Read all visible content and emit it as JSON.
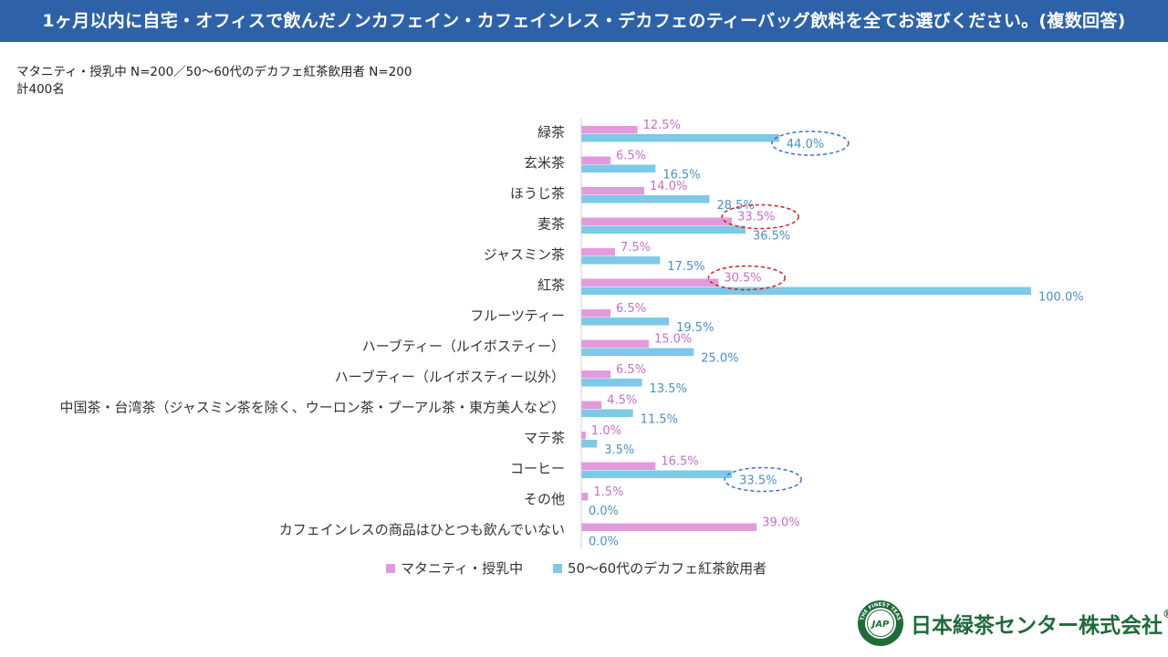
{
  "title": "1ヶ月以内に自宅・オフィスで飲んだノンカフェイン・カフェインレス・デカフェのティーバッグ飲料を全てお選びください。(複数回答)",
  "sample_note_line1": "マタニティ・授乳中 N=200／50～60代のデカフェ紅茶飲用者 N=200",
  "sample_note_line2": "計400名",
  "company": {
    "name": "日本緑茶センター株式会社",
    "reg_mark": "®",
    "emblem_text": "THE FINEST TEAS",
    "emblem_monogram": "JAP"
  },
  "colors": {
    "series1": "#e39adc",
    "series2": "#7ec8e8",
    "label1": "#c86ec8",
    "label2": "#4a90c8",
    "highlight_blue": "#3a6fd8",
    "highlight_red": "#d42020",
    "brand_green": "#1f6b3a",
    "title_bg": "#2e62a8"
  },
  "chart_data": {
    "type": "bar",
    "orientation": "horizontal",
    "categories": [
      "緑茶",
      "玄米茶",
      "ほうじ茶",
      "麦茶",
      "ジャスミン茶",
      "紅茶",
      "フルーツティー",
      "ハーブティー（ルイボスティー）",
      "ハーブティー（ルイボスティー以外）",
      "中国茶・台湾茶（ジャスミン茶を除く、ウーロン茶・プーアル茶・東方美人など）",
      "マテ茶",
      "コーヒー",
      "その他",
      "カフェインレスの商品はひとつも飲んでいない"
    ],
    "series": [
      {
        "name": "マタニティ・授乳中",
        "values": [
          12.5,
          6.5,
          14.0,
          33.5,
          7.5,
          30.5,
          6.5,
          15.0,
          6.5,
          4.5,
          1.0,
          16.5,
          1.5,
          39.0
        ],
        "labels": [
          "12.5%",
          "6.5%",
          "14.0%",
          "33.5%",
          "7.5%",
          "30.5%",
          "6.5%",
          "15.0%",
          "6.5%",
          "4.5%",
          "1.0%",
          "16.5%",
          "1.5%",
          "39.0%"
        ]
      },
      {
        "name": "50～60代のデカフェ紅茶飲用者",
        "values": [
          44.0,
          16.5,
          28.5,
          36.5,
          17.5,
          100.0,
          19.5,
          25.0,
          13.5,
          11.5,
          3.5,
          33.5,
          0.0,
          0.0
        ],
        "labels": [
          "44.0%",
          "16.5%",
          "28.5%",
          "36.5%",
          "17.5%",
          "100.0%",
          "19.5%",
          "25.0%",
          "13.5%",
          "11.5%",
          "3.5%",
          "33.5%",
          "0.0%",
          "0.0%"
        ]
      }
    ],
    "xlim": [
      0,
      100
    ],
    "unit": "%",
    "legend": "bottom",
    "highlights": [
      {
        "category": 0,
        "series": 1,
        "color": "blue"
      },
      {
        "category": 3,
        "series": 0,
        "color": "red"
      },
      {
        "category": 5,
        "series": 0,
        "color": "red"
      },
      {
        "category": 11,
        "series": 1,
        "color": "blue"
      }
    ]
  }
}
